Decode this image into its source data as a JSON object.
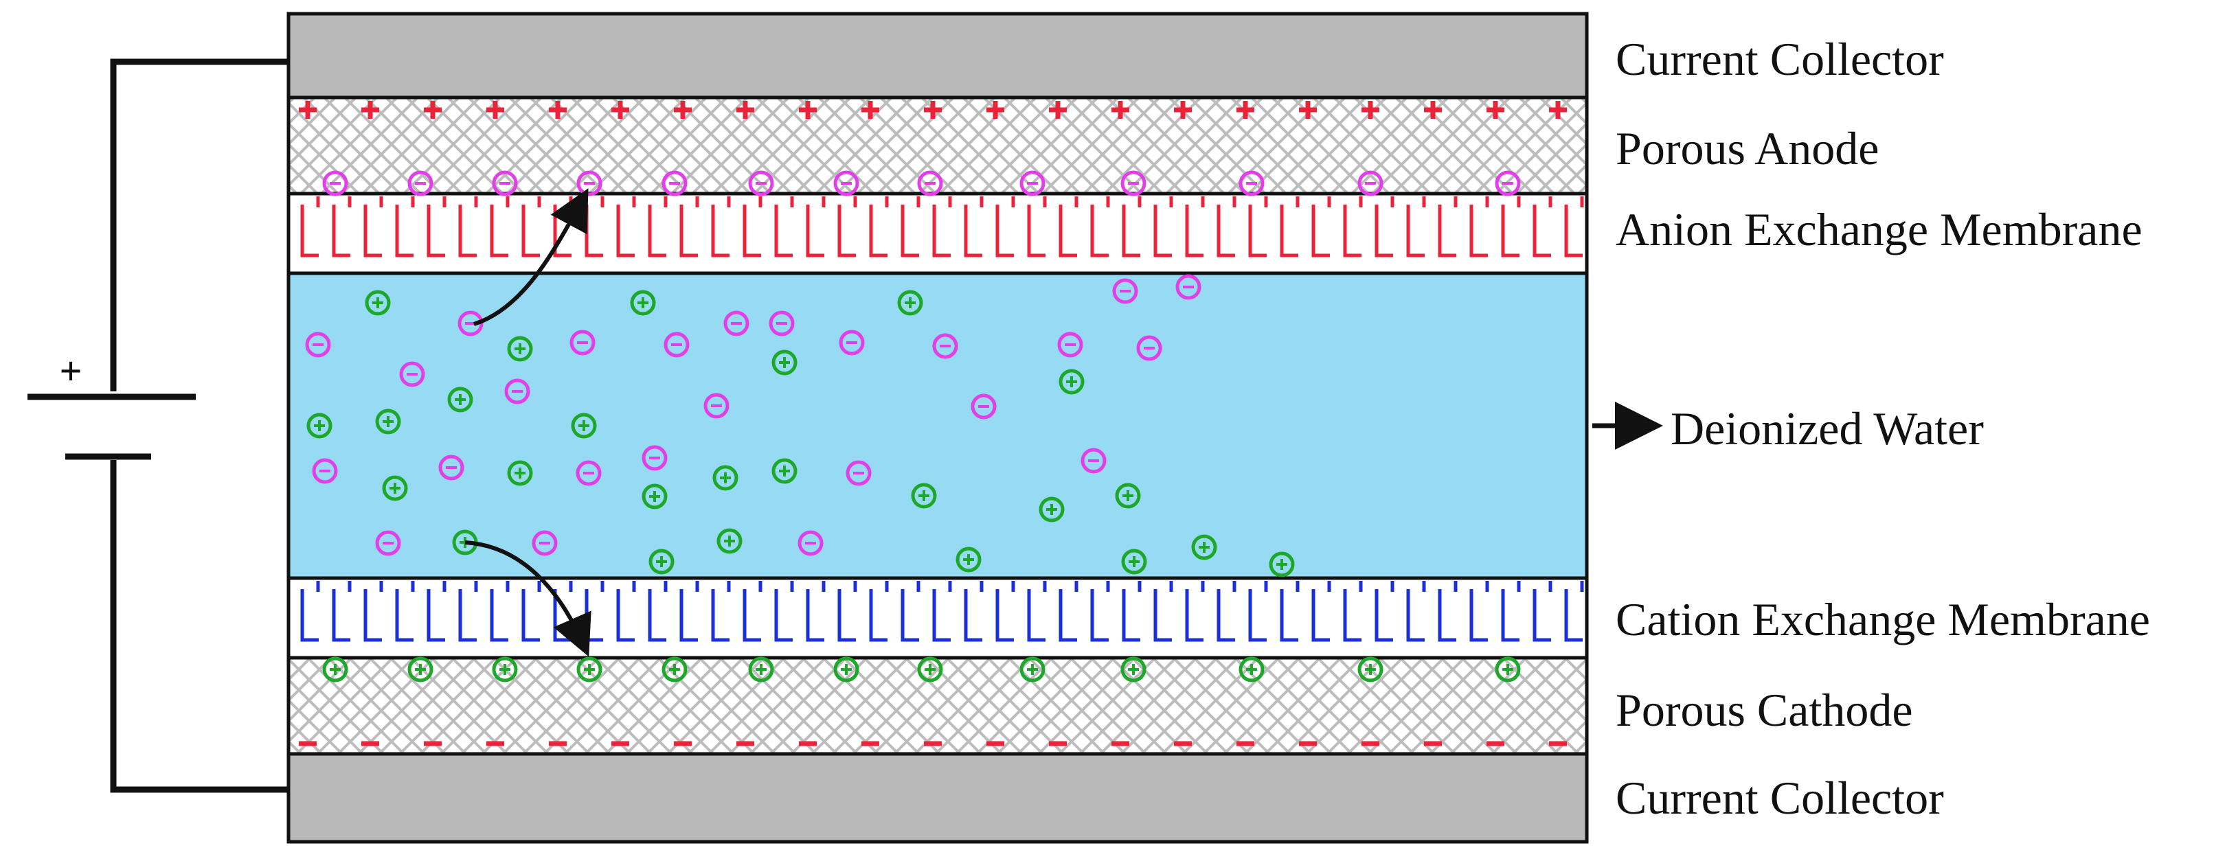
{
  "labels": {
    "current_collector_top": "Current Collector",
    "porous_anode": "Porous Anode",
    "anion_membrane": "Anion Exchange Membrane",
    "deionized_water": "Deionized Water",
    "cation_membrane": "Cation Exchange Membrane",
    "porous_cathode": "Porous Cathode",
    "current_collector_bottom": "Current Collector",
    "battery_plus": "+"
  },
  "colors": {
    "collector": "#b9b9b9",
    "water": "#97daf3",
    "anion": "#e8233a",
    "cation": "#1a2fd6",
    "anion_ion": "#e23fe8",
    "cation_ion": "#1ea82a",
    "hatch": "#bdbdbd"
  },
  "ions": {
    "anode_anions": 14,
    "cathode_cations": 14,
    "channel_anions": 24,
    "channel_cations": 26
  }
}
